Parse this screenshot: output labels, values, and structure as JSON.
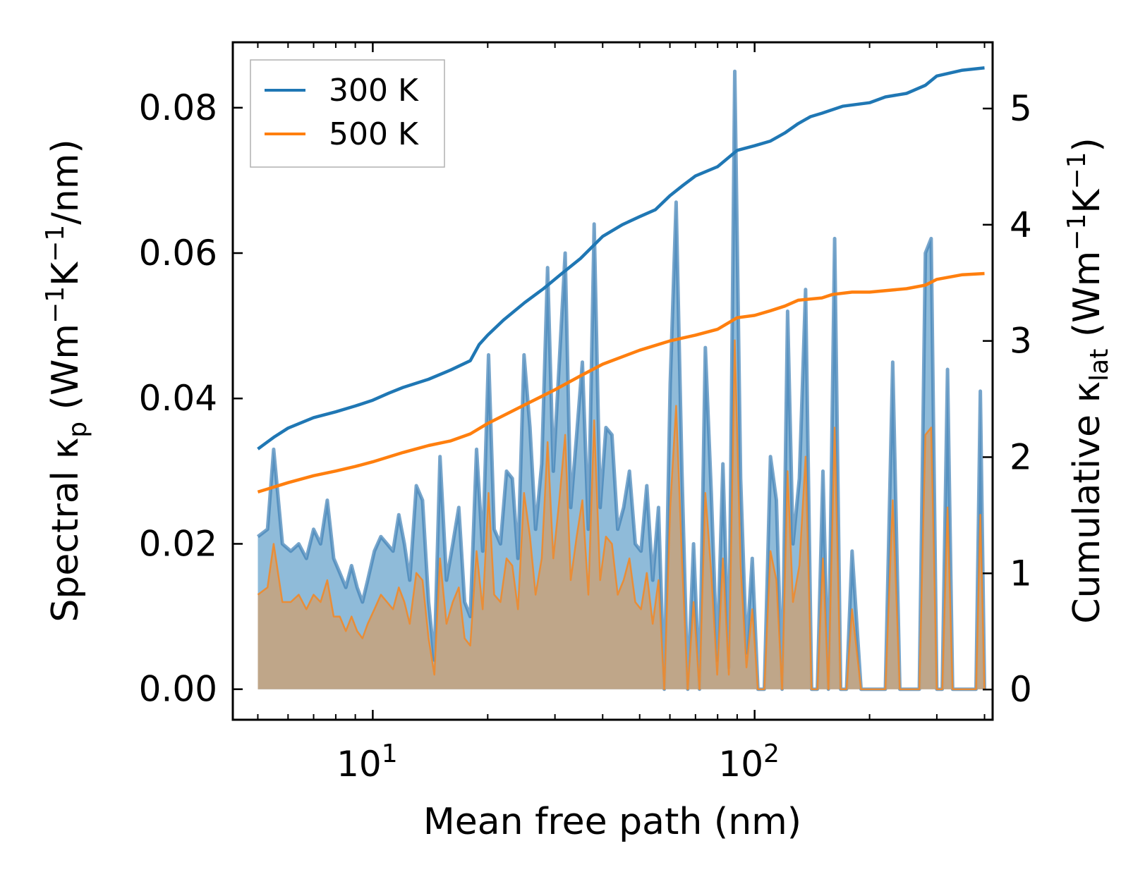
{
  "chart_data": {
    "type": "line",
    "xscale": "log",
    "xlim": [
      4.3,
      420
    ],
    "ylim_left": [
      -0.0042,
      0.089
    ],
    "ylim_right": [
      -0.26,
      5.57
    ],
    "xlabel": "Mean free path (nm)",
    "ylabel_left": {
      "pre": "Spectral κ",
      "sub": "p",
      "post": " (Wm",
      "sup1": "−1",
      "mid": "K",
      "sup2": "−1",
      "end": "/nm)"
    },
    "ylabel_right": {
      "pre": "Cumulative κ",
      "sub": "lat",
      "post": " (Wm",
      "sup1": "−1",
      "mid": "K",
      "sup2": "−1",
      "end": ")"
    },
    "xticks": [
      {
        "value": 10,
        "base": "10",
        "exp": "1"
      },
      {
        "value": 100,
        "base": "10",
        "exp": "2"
      }
    ],
    "yticks_left": [
      {
        "value": 0.0,
        "label": "0.00"
      },
      {
        "value": 0.02,
        "label": "0.02"
      },
      {
        "value": 0.04,
        "label": "0.04"
      },
      {
        "value": 0.06,
        "label": "0.06"
      },
      {
        "value": 0.08,
        "label": "0.08"
      }
    ],
    "yticks_right": [
      {
        "value": 0,
        "label": "0"
      },
      {
        "value": 1,
        "label": "1"
      },
      {
        "value": 2,
        "label": "2"
      },
      {
        "value": 3,
        "label": "3"
      },
      {
        "value": 4,
        "label": "4"
      },
      {
        "value": 5,
        "label": "5"
      }
    ],
    "legend": {
      "position": "upper-left",
      "entries": [
        "300 K",
        "500 K"
      ]
    },
    "colors": {
      "300 K": "#1f77b4",
      "500 K": "#ff7f0e",
      "fill_300": "#1f77b4",
      "fill_500": "#c8a27a"
    },
    "series": [
      {
        "name": "300 K",
        "cumulative": {
          "x": [
            5,
            5.5,
            6,
            7,
            8,
            9,
            10,
            11,
            12,
            14,
            16,
            18,
            19,
            20,
            22,
            25,
            28,
            31,
            35,
            40,
            45,
            50,
            55,
            60,
            65,
            70,
            80,
            90,
            100,
            110,
            120,
            130,
            140,
            150,
            170,
            200,
            220,
            250,
            280,
            300,
            350,
            400
          ],
          "y": [
            2.07,
            2.17,
            2.25,
            2.34,
            2.39,
            2.44,
            2.49,
            2.55,
            2.6,
            2.67,
            2.75,
            2.83,
            2.97,
            3.05,
            3.18,
            3.33,
            3.45,
            3.57,
            3.71,
            3.9,
            4.0,
            4.07,
            4.13,
            4.25,
            4.34,
            4.42,
            4.5,
            4.64,
            4.68,
            4.72,
            4.79,
            4.87,
            4.93,
            4.96,
            5.02,
            5.05,
            5.1,
            5.13,
            5.2,
            5.28,
            5.33,
            5.35
          ]
        },
        "spectral": {
          "x": [
            5,
            5.3,
            5.5,
            5.8,
            6.1,
            6.4,
            6.7,
            7.0,
            7.3,
            7.6,
            7.9,
            8.2,
            8.5,
            8.8,
            9.1,
            9.4,
            9.7,
            10.1,
            10.5,
            10.9,
            11.3,
            11.7,
            12.1,
            12.5,
            13.0,
            13.5,
            14.0,
            14.5,
            15.0,
            15.6,
            16.2,
            16.8,
            17.4,
            18.0,
            18.7,
            19.4,
            20.1,
            20.8,
            21.6,
            22.4,
            23.2,
            24.0,
            24.9,
            25.8,
            26.7,
            27.7,
            28.7,
            29.7,
            30.8,
            31.9,
            33.0,
            34.2,
            35.4,
            36.7,
            38.0,
            39.4,
            40.8,
            42.3,
            43.8,
            45.4,
            47.0,
            48.7,
            50.4,
            52.2,
            54.1,
            56.0,
            58.0,
            60.1,
            62.3,
            64.5,
            66.8,
            69.2,
            71.7,
            74.3,
            77.0,
            79.8,
            82.6,
            85.6,
            88.7,
            91.9,
            95.2,
            98.6,
            102,
            106,
            110,
            114,
            118,
            122,
            126,
            131,
            136,
            141,
            146,
            151,
            156,
            162,
            168,
            174,
            180,
            190,
            200,
            210,
            220,
            230,
            240,
            250,
            260,
            270,
            280,
            290,
            300,
            310,
            320,
            330,
            340,
            350,
            360,
            370,
            380,
            390,
            400
          ],
          "y": [
            0.021,
            0.022,
            0.033,
            0.02,
            0.019,
            0.02,
            0.018,
            0.022,
            0.02,
            0.026,
            0.018,
            0.016,
            0.014,
            0.017,
            0.014,
            0.012,
            0.015,
            0.019,
            0.021,
            0.02,
            0.019,
            0.024,
            0.02,
            0.015,
            0.028,
            0.026,
            0.012,
            0.004,
            0.032,
            0.015,
            0.02,
            0.025,
            0.012,
            0.01,
            0.033,
            0.019,
            0.046,
            0.022,
            0.02,
            0.03,
            0.029,
            0.018,
            0.046,
            0.036,
            0.022,
            0.031,
            0.058,
            0.03,
            0.045,
            0.06,
            0.025,
            0.035,
            0.045,
            0.022,
            0.064,
            0.025,
            0.036,
            0.035,
            0.022,
            0.025,
            0.03,
            0.02,
            0.019,
            0.028,
            0.015,
            0.025,
            0.0,
            0.042,
            0.067,
            0.03,
            0.0,
            0.02,
            0.0,
            0.047,
            0.027,
            0.004,
            0.031,
            0.003,
            0.085,
            0.029,
            0.005,
            0.018,
            0.0,
            0.0,
            0.032,
            0.026,
            0.0,
            0.052,
            0.02,
            0.029,
            0.055,
            0.0,
            0.0,
            0.03,
            0.0,
            0.062,
            0.0,
            0.0,
            0.019,
            0.0,
            0.0,
            0.0,
            0.0,
            0.045,
            0.0,
            0.0,
            0.0,
            0.0,
            0.06,
            0.062,
            0.0,
            0.0,
            0.044,
            0.0,
            0.0,
            0.0,
            0.0,
            0.0,
            0.0,
            0.041,
            0.0
          ]
        }
      },
      {
        "name": "500 K",
        "cumulative": {
          "x": [
            5,
            6,
            7,
            8,
            9,
            10,
            12,
            14,
            16,
            18,
            20,
            25,
            30,
            35,
            40,
            50,
            60,
            70,
            80,
            90,
            100,
            110,
            120,
            130,
            150,
            160,
            180,
            200,
            250,
            280,
            300,
            350,
            400
          ],
          "y": [
            1.7,
            1.78,
            1.84,
            1.88,
            1.92,
            1.96,
            2.04,
            2.1,
            2.14,
            2.2,
            2.29,
            2.45,
            2.58,
            2.7,
            2.8,
            2.92,
            3.0,
            3.05,
            3.1,
            3.2,
            3.22,
            3.26,
            3.3,
            3.35,
            3.37,
            3.4,
            3.42,
            3.42,
            3.45,
            3.48,
            3.53,
            3.57,
            3.58
          ]
        },
        "spectral": {
          "x": [
            5,
            5.3,
            5.5,
            5.8,
            6.1,
            6.4,
            6.7,
            7.0,
            7.3,
            7.6,
            7.9,
            8.2,
            8.5,
            8.8,
            9.1,
            9.4,
            9.7,
            10.1,
            10.5,
            10.9,
            11.3,
            11.7,
            12.1,
            12.5,
            13.0,
            13.5,
            14.0,
            14.5,
            15.0,
            15.6,
            16.2,
            16.8,
            17.4,
            18.0,
            18.7,
            19.4,
            20.1,
            20.8,
            21.6,
            22.4,
            23.2,
            24.0,
            24.9,
            25.8,
            26.7,
            27.7,
            28.7,
            29.7,
            30.8,
            31.9,
            33.0,
            34.2,
            35.4,
            36.7,
            38.0,
            39.4,
            40.8,
            42.3,
            43.8,
            45.4,
            47.0,
            48.7,
            50.4,
            52.2,
            54.1,
            56.0,
            58.0,
            60.1,
            62.3,
            64.5,
            66.8,
            69.2,
            71.7,
            74.3,
            77.0,
            79.8,
            82.6,
            85.6,
            88.7,
            91.9,
            95.2,
            98.6,
            102,
            106,
            110,
            114,
            118,
            122,
            126,
            131,
            136,
            141,
            146,
            151,
            156,
            162,
            168,
            174,
            180,
            190,
            200,
            210,
            220,
            230,
            240,
            250,
            260,
            270,
            280,
            290,
            300,
            310,
            320,
            330,
            340,
            350,
            360,
            370,
            380,
            390,
            400
          ],
          "y": [
            0.013,
            0.014,
            0.02,
            0.012,
            0.012,
            0.013,
            0.011,
            0.013,
            0.012,
            0.015,
            0.01,
            0.01,
            0.008,
            0.01,
            0.008,
            0.007,
            0.009,
            0.011,
            0.013,
            0.012,
            0.011,
            0.014,
            0.012,
            0.009,
            0.016,
            0.015,
            0.007,
            0.002,
            0.018,
            0.009,
            0.012,
            0.014,
            0.007,
            0.006,
            0.019,
            0.011,
            0.027,
            0.013,
            0.012,
            0.018,
            0.017,
            0.011,
            0.027,
            0.021,
            0.013,
            0.018,
            0.034,
            0.018,
            0.026,
            0.035,
            0.015,
            0.021,
            0.026,
            0.013,
            0.037,
            0.015,
            0.021,
            0.02,
            0.013,
            0.015,
            0.018,
            0.012,
            0.011,
            0.016,
            0.009,
            0.015,
            0.0,
            0.025,
            0.039,
            0.018,
            0.0,
            0.012,
            0.0,
            0.027,
            0.016,
            0.002,
            0.018,
            0.002,
            0.048,
            0.017,
            0.003,
            0.011,
            0.0,
            0.0,
            0.019,
            0.015,
            0.0,
            0.03,
            0.012,
            0.017,
            0.032,
            0.0,
            0.0,
            0.018,
            0.0,
            0.036,
            0.0,
            0.0,
            0.011,
            0.0,
            0.0,
            0.0,
            0.0,
            0.026,
            0.0,
            0.0,
            0.0,
            0.0,
            0.035,
            0.036,
            0.0,
            0.0,
            0.025,
            0.0,
            0.0,
            0.0,
            0.0,
            0.0,
            0.0,
            0.024,
            0.0
          ]
        }
      }
    ]
  }
}
